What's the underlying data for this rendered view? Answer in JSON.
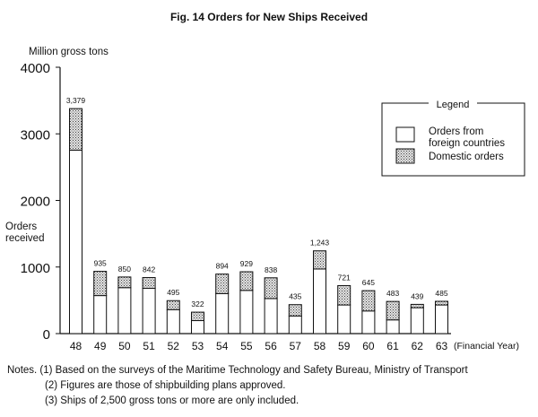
{
  "title": "Fig. 14 Orders for New Ships Received",
  "notes": [
    "Notes. (1) Based on the surveys of the Maritime Technology and Safety Bureau, Ministry of Transport",
    "(2) Figures are those of shipbuilding plans approved.",
    "(3) Ships of 2,500 gross tons or more are only included."
  ],
  "colors": {
    "foreign": "#ffffff",
    "domestic": "#bdbdbd",
    "stroke": "#111111"
  },
  "chart_data": {
    "type": "bar",
    "stacked": true,
    "title": "Fig. 14 Orders for New Ships Received",
    "y_unit": "Million gross tons",
    "ylabel": "Orders received",
    "xlabel": "(Financial Year)",
    "ylim": [
      0,
      4000
    ],
    "yticks": [
      "0",
      "1000",
      "2000",
      "3000",
      "4000"
    ],
    "categories": [
      "48",
      "49",
      "50",
      "51",
      "52",
      "53",
      "54",
      "55",
      "56",
      "57",
      "58",
      "59",
      "60",
      "61",
      "62",
      "63"
    ],
    "totals_labels": [
      "3,379",
      "935",
      "850",
      "842",
      "495",
      "322",
      "894",
      "929",
      "838",
      "435",
      "1,243",
      "721",
      "645",
      "483",
      "439",
      "485"
    ],
    "totals": [
      3379,
      935,
      850,
      842,
      495,
      322,
      894,
      929,
      838,
      435,
      1243,
      721,
      645,
      483,
      439,
      485
    ],
    "series": [
      {
        "name": "Orders from foreign countries",
        "values": [
          2755,
          571,
          690,
          680,
          360,
          195,
          601,
          649,
          526,
          265,
          970,
          430,
          340,
          206,
          389,
          430
        ]
      },
      {
        "name": "Domestic orders",
        "values": [
          624,
          364,
          160,
          162,
          135,
          127,
          293,
          280,
          312,
          170,
          273,
          291,
          305,
          277,
          50,
          55
        ]
      }
    ],
    "legend": {
      "title": "Legend",
      "entries": [
        "Orders from",
        "foreign countries",
        "Domestic orders"
      ],
      "placement": "top-right"
    },
    "grid": false
  }
}
